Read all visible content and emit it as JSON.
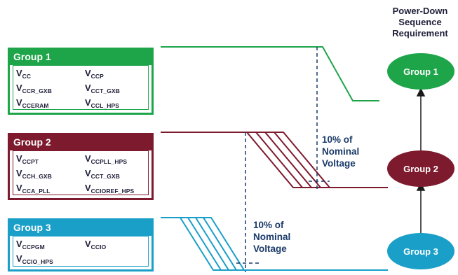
{
  "sequence_title_lines": [
    "Power-Down",
    "Sequence",
    "Requirement"
  ],
  "groups": [
    {
      "title": "Group 1",
      "rails": [
        {
          "base": "V",
          "sub": "CC"
        },
        {
          "base": "V",
          "sub": "CCP"
        },
        {
          "base": "V",
          "sub": "CCR_GXB"
        },
        {
          "base": "V",
          "sub": "CCT_GXB"
        },
        {
          "base": "V",
          "sub": "CCERAM"
        },
        {
          "base": "V",
          "sub": "CCL_HPS"
        }
      ]
    },
    {
      "title": "Group 2",
      "rails": [
        {
          "base": "V",
          "sub": "CCPT"
        },
        {
          "base": "V",
          "sub": "CCPLL_HPS"
        },
        {
          "base": "V",
          "sub": "CCH_GXB"
        },
        {
          "base": "V",
          "sub": "CCT_GXB"
        },
        {
          "base": "V",
          "sub": "CCA_PLL"
        },
        {
          "base": "V",
          "sub": "CCIOREF_HPS"
        }
      ]
    },
    {
      "title": "Group 3",
      "rails": [
        {
          "base": "V",
          "sub": "CCPGM"
        },
        {
          "base": "V",
          "sub": "CCIO"
        },
        {
          "base": "V",
          "sub": "CCIO_HPS"
        }
      ]
    }
  ],
  "callouts": [
    {
      "lines": [
        "10% of",
        "Nominal",
        "Voltage"
      ]
    },
    {
      "lines": [
        "10% of",
        "Nominal",
        "Voltage"
      ]
    }
  ],
  "sequence_nodes": [
    {
      "label": "Group 1"
    },
    {
      "label": "Group 2"
    },
    {
      "label": "Group 3"
    }
  ],
  "colors": {
    "group1": "#1ea54a",
    "group2": "#7d1a2d",
    "group3": "#1a9fc8",
    "dashed": "#1a3a6a",
    "text": "#1f1f3a"
  }
}
